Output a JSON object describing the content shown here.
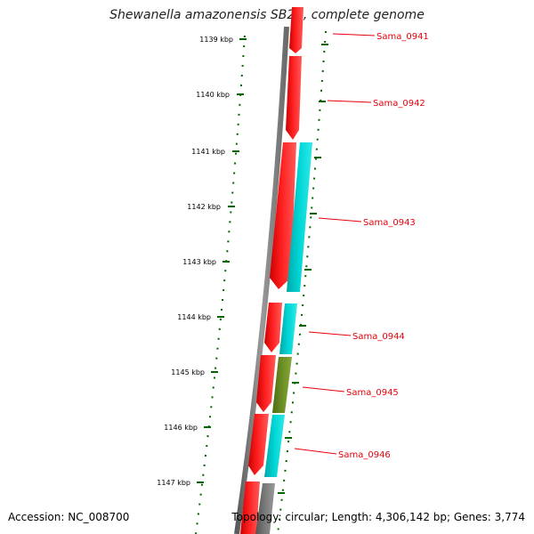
{
  "title": "Shewanella amazonensis SB2B, complete genome",
  "footer": {
    "accession": "Accession: NC_008700",
    "stats": "Topology: circular; Length: 4,306,142 bp; Genes: 3,774"
  },
  "colors": {
    "backbone": "#808080",
    "forward_cds": "#ff0000",
    "rna_feature": "#00cccc",
    "olive_feature": "#6b8e23",
    "grey_feature": "#777777",
    "tick": "#006400",
    "gene_label": "#e8000b"
  },
  "scale_labels": [
    "1139 kbp",
    "1140 kbp",
    "1141 kbp",
    "1142 kbp",
    "1143 kbp",
    "1144 kbp",
    "1145 kbp",
    "1146 kbp",
    "1147 kbp"
  ],
  "gene_labels": [
    "Sama_0941",
    "Sama_0942",
    "Sama_0943",
    "Sama_0944",
    "Sama_0945",
    "Sama_0946"
  ]
}
